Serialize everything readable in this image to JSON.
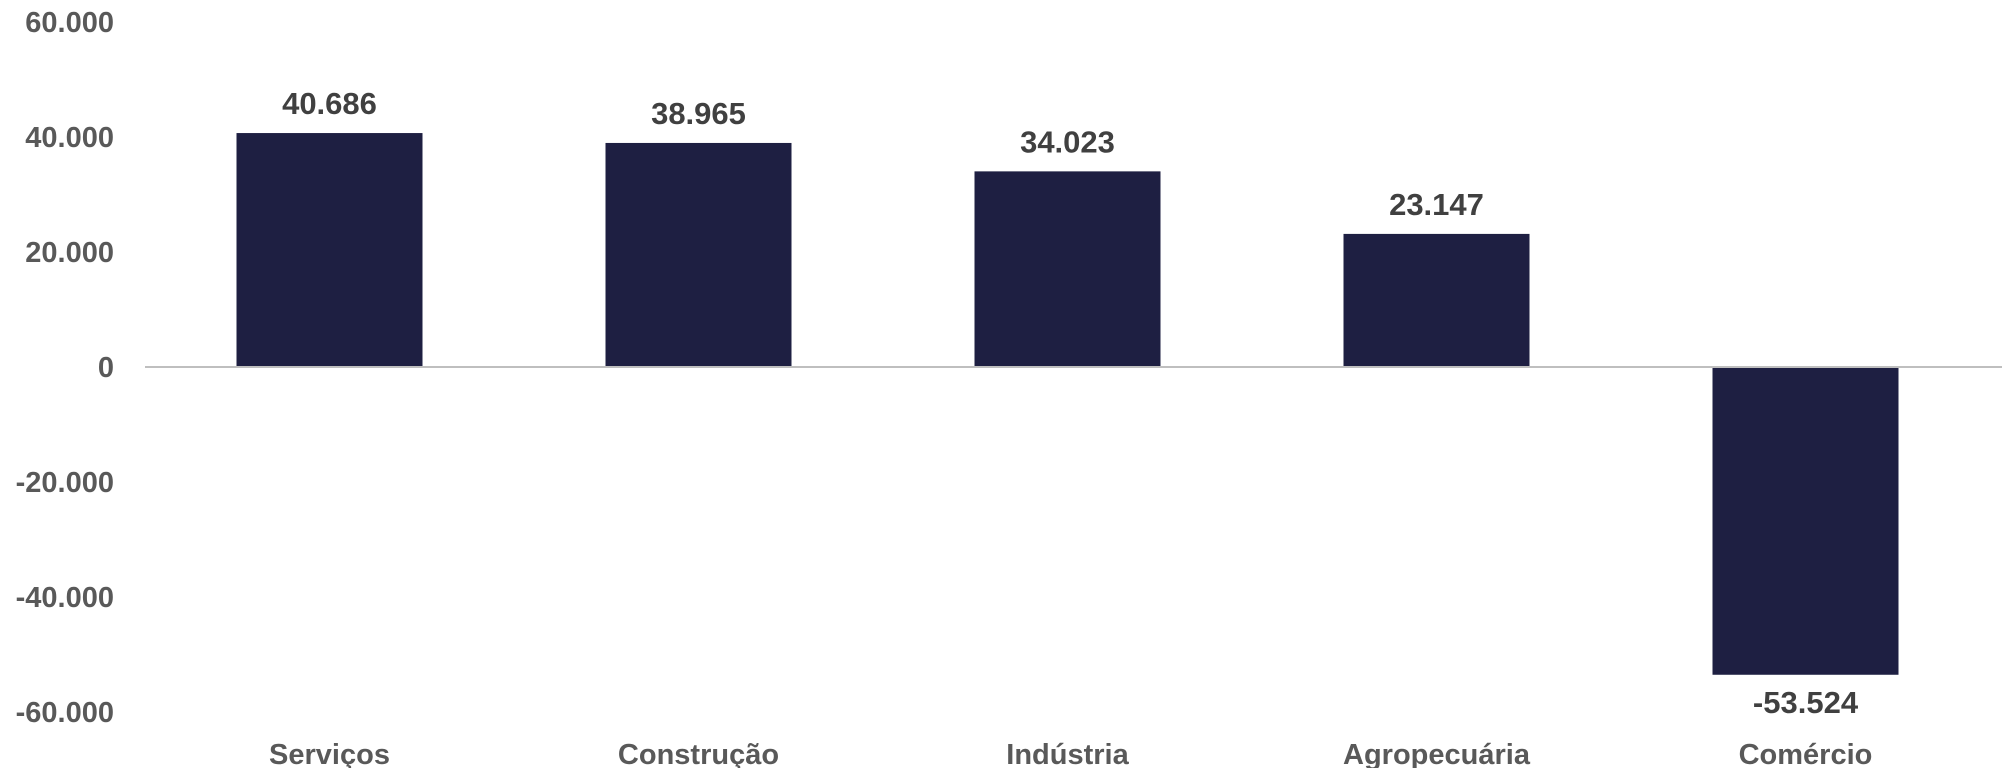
{
  "chart_data": {
    "type": "bar",
    "categories": [
      "Serviços",
      "Construção",
      "Indústria",
      "Agropecuária",
      "Comércio"
    ],
    "values": [
      40686,
      38965,
      34023,
      23147,
      -53524
    ],
    "value_labels": [
      "40.686",
      "38.965",
      "34.023",
      "23.147",
      "-53.524"
    ],
    "yticks": [
      60000,
      40000,
      20000,
      0,
      -20000,
      -40000,
      -60000
    ],
    "ytick_labels": [
      "60.000",
      "40.000",
      "20.000",
      "0",
      "-20.000",
      "-40.000",
      "-60.000"
    ],
    "ylim": [
      -60000,
      60000
    ],
    "grid": false,
    "legend": "none",
    "bar_color": "#1e1f42",
    "axis_color": "#bfbfbf"
  }
}
